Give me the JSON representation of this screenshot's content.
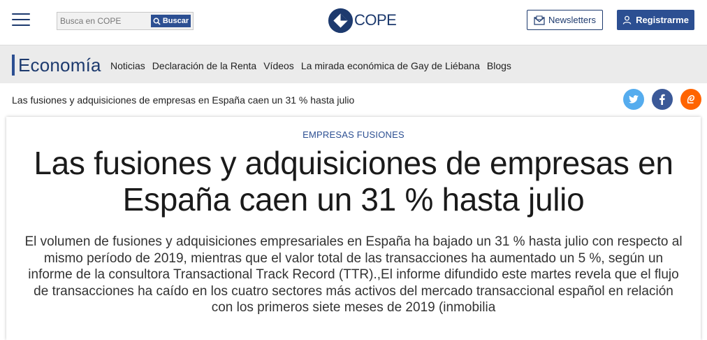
{
  "header": {
    "search_placeholder": "Busca en COPE",
    "search_button_label": "Buscar",
    "logo_text": "COPE",
    "newsletters_label": "Newsletters",
    "register_label": "Registrarme"
  },
  "section": {
    "title": "Economía",
    "links": [
      {
        "label": "Noticias"
      },
      {
        "label": "Declaración de la Renta"
      },
      {
        "label": "Vídeos"
      },
      {
        "label": "La mirada económica de Gay de Liébana"
      },
      {
        "label": "Blogs"
      }
    ]
  },
  "sticky": {
    "title": "Las fusiones y adquisiciones de empresas en España caen un 31 % hasta julio",
    "share": [
      {
        "icon": "twitter-icon",
        "color": "#55acee"
      },
      {
        "icon": "facebook-icon",
        "color": "#3b5998"
      },
      {
        "icon": "meneame-icon",
        "color": "#ff6400"
      }
    ]
  },
  "article": {
    "kicker": "EMPRESAS FUSIONES",
    "headline": "Las fusiones y adquisiciones de empresas en España caen un 31 % hasta julio",
    "lede": "El volumen de fusiones y adquisiciones empresariales en España ha bajado un 31 % hasta julio con respecto al mismo período de 2019, mientras que el valor total de las transacciones ha aumentado un 5 %, según un informe de la consultora Transactional Track Record (TTR).,El informe difundido este martes revela que el flujo de transacciones ha caído en los cuatro sectores más activos del mercado transaccional español en relación con los primeros siete meses de 2019 (inmobilia"
  },
  "colors": {
    "brand": "#1d3a6e",
    "accent": "#2c4f92",
    "section_bg": "#ebebeb"
  }
}
